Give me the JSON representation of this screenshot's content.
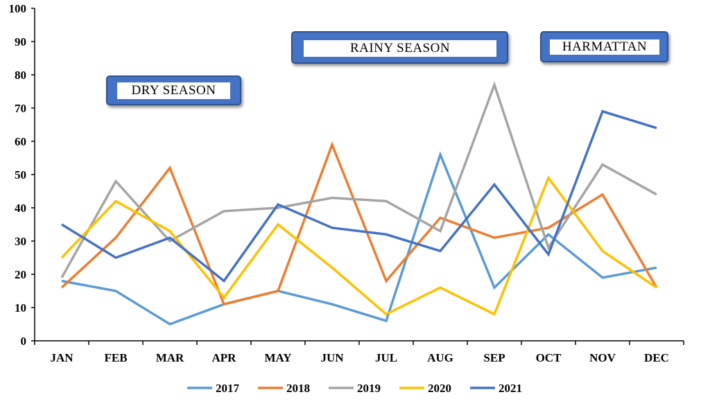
{
  "chart_data": {
    "type": "line",
    "categories": [
      "JAN",
      "FEB",
      "MAR",
      "APR",
      "MAY",
      "JUN",
      "JUL",
      "AUG",
      "SEP",
      "OCT",
      "NOV",
      "DEC"
    ],
    "ylim": [
      0,
      100
    ],
    "yticks": [
      0,
      10,
      20,
      30,
      40,
      50,
      60,
      70,
      80,
      90,
      100
    ],
    "grid": false,
    "legend_position": "bottom",
    "series": [
      {
        "name": "2017",
        "color": "#5b9bd5",
        "values": [
          18,
          15,
          5,
          11,
          15,
          11,
          6,
          56,
          16,
          32,
          19,
          22
        ]
      },
      {
        "name": "2018",
        "color": "#ed7d31",
        "values": [
          16,
          31,
          52,
          11,
          15,
          59,
          18,
          37,
          31,
          34,
          44,
          16
        ]
      },
      {
        "name": "2019",
        "color": "#a5a5a5",
        "values": [
          19,
          48,
          30,
          39,
          40,
          43,
          42,
          33,
          77,
          28,
          53,
          44
        ]
      },
      {
        "name": "2020",
        "color": "#ffc000",
        "values": [
          25,
          42,
          33,
          13,
          35,
          22,
          8,
          16,
          8,
          49,
          27,
          16
        ]
      },
      {
        "name": "2021",
        "color": "#4472c4",
        "values": [
          35,
          25,
          31,
          18,
          41,
          34,
          32,
          27,
          47,
          26,
          69,
          64
        ]
      }
    ],
    "annotations": [
      {
        "id": "dry",
        "text": "DRY SEASON"
      },
      {
        "id": "rainy",
        "text": "RAINY SEASON"
      },
      {
        "id": "harmattan",
        "text": "HARMATTAN"
      }
    ]
  }
}
